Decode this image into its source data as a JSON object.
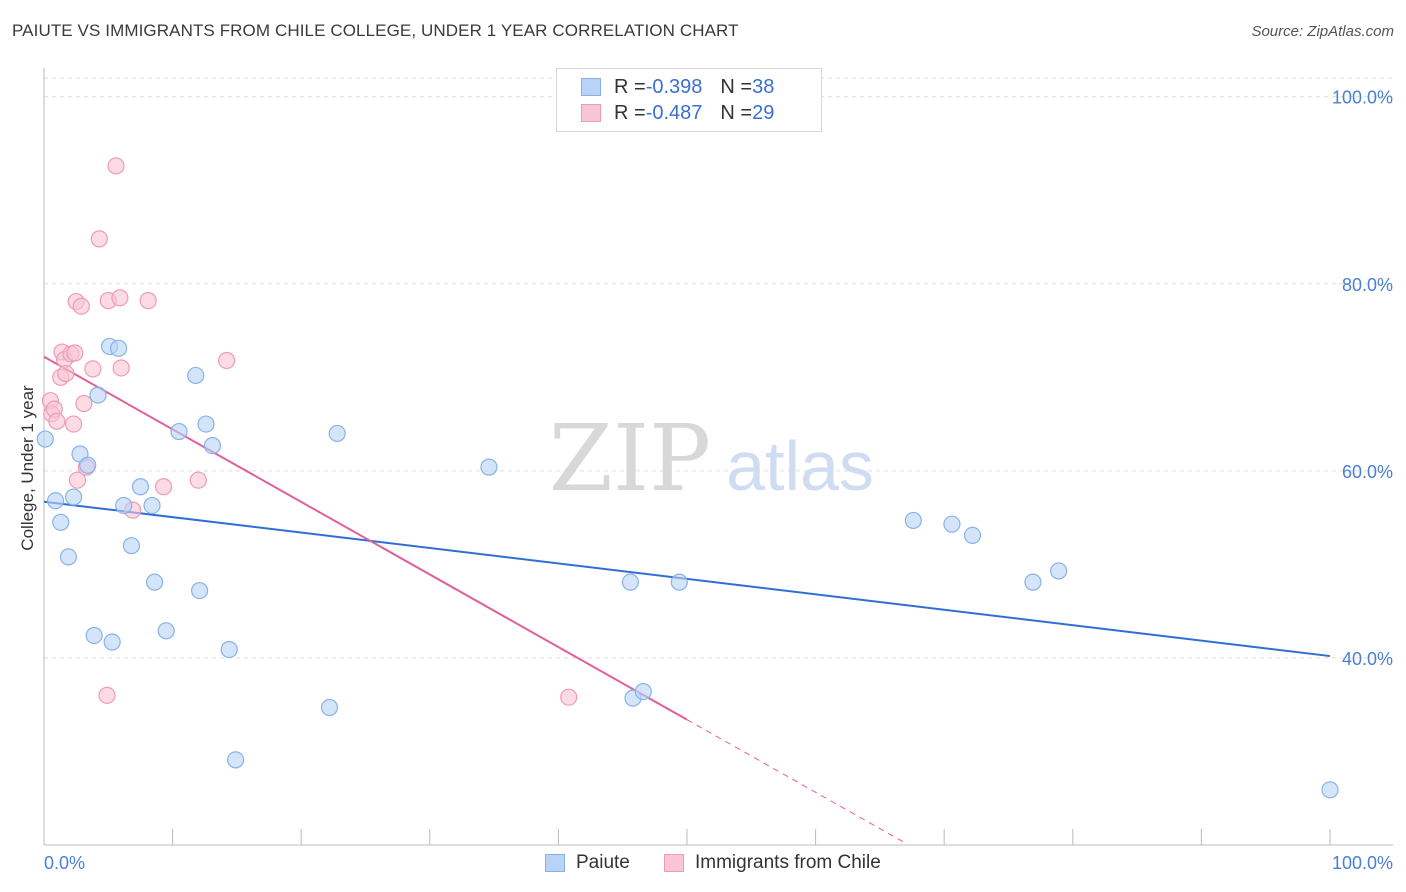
{
  "title": "PAIUTE VS IMMIGRANTS FROM CHILE COLLEGE, UNDER 1 YEAR CORRELATION CHART",
  "source": "Source: ZipAtlas.com",
  "watermark": {
    "zip": "ZIP",
    "atlas": "atlas"
  },
  "legend": {
    "row1": {
      "r_label": "R = ",
      "r_value": "-0.398",
      "n_label": "N = ",
      "n_value": "38"
    },
    "row2": {
      "r_label": "R = ",
      "r_value": "-0.487",
      "n_label": "N = ",
      "n_value": "29"
    }
  },
  "colors": {
    "paiute_fill": "#b8d3f5",
    "paiute_stroke": "#88b2e8",
    "paiute_line": "#2f6fd4",
    "chile_fill": "#f8c5d4",
    "chile_stroke": "#f09bb6",
    "chile_line": "#e0609a",
    "tick_label": "#4a7fd6",
    "grid": "#dcdcdc",
    "axis": "#bbbbbb"
  },
  "chart_data": {
    "type": "scatter",
    "title": "PAIUTE VS IMMIGRANTS FROM CHILE COLLEGE, UNDER 1 YEAR CORRELATION CHART",
    "xlabel": "",
    "ylabel": "College, Under 1 year",
    "xlim": [
      0,
      100
    ],
    "ylim": [
      20,
      102
    ],
    "x_tick_labels": [
      "0.0%",
      "100.0%"
    ],
    "y_ticks": [
      40,
      60,
      80,
      100
    ],
    "y_tick_labels": [
      "40.0%",
      "60.0%",
      "80.0%",
      "100.0%"
    ],
    "grid": true,
    "legend_position": "top-center",
    "series": [
      {
        "name": "Paiute",
        "r": -0.398,
        "n": 38,
        "trend": {
          "x": [
            0,
            100
          ],
          "y": [
            56.7,
            40.2
          ]
        },
        "points": [
          [
            0.1,
            63.4
          ],
          [
            0.9,
            56.8
          ],
          [
            1.3,
            54.5
          ],
          [
            1.9,
            50.8
          ],
          [
            2.3,
            57.2
          ],
          [
            2.8,
            61.8
          ],
          [
            3.4,
            60.6
          ],
          [
            3.9,
            42.4
          ],
          [
            4.2,
            68.1
          ],
          [
            5.1,
            73.3
          ],
          [
            5.3,
            41.7
          ],
          [
            5.8,
            73.1
          ],
          [
            6.2,
            56.3
          ],
          [
            6.8,
            52.0
          ],
          [
            7.5,
            58.3
          ],
          [
            8.4,
            56.3
          ],
          [
            8.6,
            48.1
          ],
          [
            9.5,
            42.9
          ],
          [
            10.5,
            64.2
          ],
          [
            11.8,
            70.2
          ],
          [
            12.1,
            47.2
          ],
          [
            12.6,
            65.0
          ],
          [
            13.1,
            62.7
          ],
          [
            14.4,
            40.9
          ],
          [
            22.2,
            34.7
          ],
          [
            14.9,
            29.1
          ],
          [
            22.8,
            64.0
          ],
          [
            34.6,
            60.4
          ],
          [
            45.6,
            48.1
          ],
          [
            45.8,
            35.7
          ],
          [
            46.6,
            36.4
          ],
          [
            49.4,
            48.1
          ],
          [
            67.6,
            54.7
          ],
          [
            70.6,
            54.3
          ],
          [
            72.2,
            53.1
          ],
          [
            76.9,
            48.1
          ],
          [
            78.9,
            49.3
          ],
          [
            100.0,
            25.9
          ]
        ]
      },
      {
        "name": "Immigrants from Chile",
        "r": -0.487,
        "n": 29,
        "trend": {
          "x": [
            0,
            50
          ],
          "y": [
            72.2,
            33.4
          ]
        },
        "trend_dashed": {
          "x": [
            50,
            67
          ],
          "y": [
            33.4,
            20.2
          ]
        },
        "points": [
          [
            0.5,
            67.5
          ],
          [
            0.6,
            66.1
          ],
          [
            0.8,
            66.6
          ],
          [
            1.0,
            65.3
          ],
          [
            1.3,
            70.0
          ],
          [
            1.4,
            72.7
          ],
          [
            1.6,
            71.9
          ],
          [
            1.7,
            70.4
          ],
          [
            2.1,
            72.5
          ],
          [
            2.3,
            65.0
          ],
          [
            2.4,
            72.6
          ],
          [
            2.5,
            78.1
          ],
          [
            2.6,
            59.0
          ],
          [
            2.9,
            77.6
          ],
          [
            3.1,
            67.2
          ],
          [
            3.3,
            60.4
          ],
          [
            3.8,
            70.9
          ],
          [
            4.3,
            84.8
          ],
          [
            4.9,
            36.0
          ],
          [
            5.0,
            78.2
          ],
          [
            5.6,
            92.6
          ],
          [
            5.9,
            78.5
          ],
          [
            6.0,
            71.0
          ],
          [
            6.9,
            55.8
          ],
          [
            8.1,
            78.2
          ],
          [
            9.3,
            58.3
          ],
          [
            12.0,
            59.0
          ],
          [
            14.2,
            71.8
          ],
          [
            40.8,
            35.8
          ]
        ]
      }
    ]
  },
  "bottom_legend": {
    "item1": "Paiute",
    "item2": "Immigrants from Chile"
  }
}
